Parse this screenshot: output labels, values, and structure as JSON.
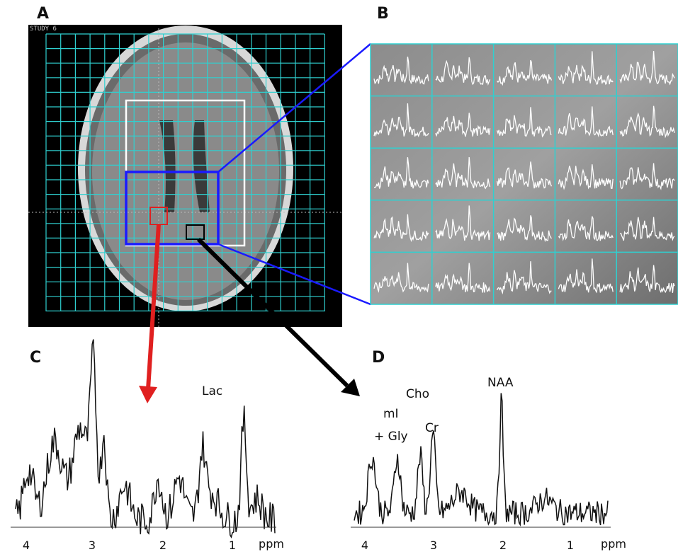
{
  "panels": [
    {
      "label": "A",
      "overlay_text": "STUDY 6"
    },
    {
      "label": "B"
    },
    {
      "label": "C",
      "peak_labels": [
        "Lac"
      ],
      "axis": {
        "ticks": [
          4,
          3,
          2,
          1
        ],
        "unit": "ppm"
      }
    },
    {
      "label": "D",
      "peak_labels": [
        "Cho",
        "mI",
        "+ Gly",
        "Cr",
        "NAA"
      ],
      "axis": {
        "ticks": [
          4,
          3,
          2,
          1
        ],
        "unit": "ppm"
      }
    }
  ]
}
